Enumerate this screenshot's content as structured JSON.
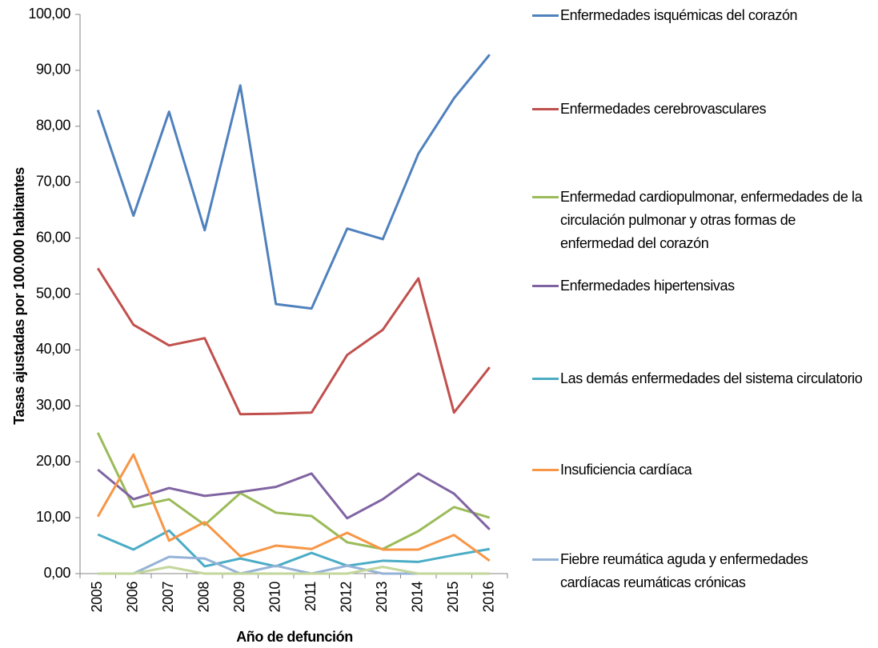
{
  "chart_data": {
    "type": "line",
    "x_label": "Año de defunción",
    "y_label": "Tasas ajustadas por 100.000 habitantes",
    "categories": [
      "2005",
      "2006",
      "2007",
      "2008",
      "2009",
      "2010",
      "2011",
      "2012",
      "2013",
      "2014",
      "2015",
      "2016"
    ],
    "series": [
      {
        "name": "Enfermedades isquémicas del corazón",
        "color": "#4f81bd",
        "values": [
          82.9,
          64.0,
          82.6,
          61.4,
          87.3,
          48.2,
          47.4,
          61.7,
          59.8,
          75.1,
          85.0,
          92.8
        ]
      },
      {
        "name": "Enfermedades cerebrovasculares",
        "color": "#c0504d",
        "values": [
          54.6,
          44.5,
          40.8,
          42.1,
          28.5,
          28.6,
          28.8,
          39.1,
          43.6,
          52.8,
          28.8,
          36.9
        ]
      },
      {
        "name": "Enfermedad cardiopulmonar, enfermedades de la circulación pulmonar y otras formas de enfermedad del corazón",
        "color": "#9bbb59",
        "values": [
          25.2,
          11.9,
          13.3,
          8.7,
          14.4,
          10.9,
          10.3,
          5.6,
          4.4,
          7.6,
          11.9,
          10.0
        ]
      },
      {
        "name": "Enfermedades hipertensivas",
        "color": "#8064a2",
        "values": [
          18.6,
          13.3,
          15.3,
          13.9,
          14.6,
          15.5,
          17.9,
          9.9,
          13.3,
          17.9,
          14.3,
          7.9
        ]
      },
      {
        "name": "Las demás enfermedades del sistema circulatorio",
        "color": "#4bacc6",
        "values": [
          7.0,
          4.3,
          7.7,
          1.3,
          2.7,
          1.3,
          3.7,
          1.4,
          2.3,
          2.1,
          3.3,
          4.4
        ]
      },
      {
        "name": "Insuficiencia cardíaca",
        "color": "#f79646",
        "values": [
          10.2,
          21.3,
          5.9,
          9.2,
          3.1,
          5.0,
          4.4,
          7.3,
          4.3,
          4.3,
          6.9,
          2.3
        ]
      },
      {
        "name": "Fiebre reumática aguda y enfermedades cardíacas reumáticas crónicas",
        "color": "#95b3d7",
        "values": [
          0,
          0,
          3.0,
          2.7,
          0,
          1.4,
          0,
          1.4,
          0,
          0,
          0,
          0
        ]
      },
      {
        "color": "#c3d69b",
        "values": [
          0,
          0,
          1.2,
          0,
          0,
          0,
          0,
          0,
          1.2,
          0,
          0,
          0
        ]
      }
    ],
    "ylim": [
      0,
      100
    ],
    "yticks": [
      {
        "value": 0,
        "label": "0,00"
      },
      {
        "value": 10,
        "label": "10,00"
      },
      {
        "value": 20,
        "label": "20,00"
      },
      {
        "value": 30,
        "label": "30,00"
      },
      {
        "value": 40,
        "label": "40,00"
      },
      {
        "value": 50,
        "label": "50,00"
      },
      {
        "value": 60,
        "label": "60,00"
      },
      {
        "value": 70,
        "label": "70,00"
      },
      {
        "value": 80,
        "label": "80,00"
      },
      {
        "value": 90,
        "label": "90,00"
      },
      {
        "value": 100,
        "label": "100,00"
      }
    ],
    "legend": "right"
  }
}
